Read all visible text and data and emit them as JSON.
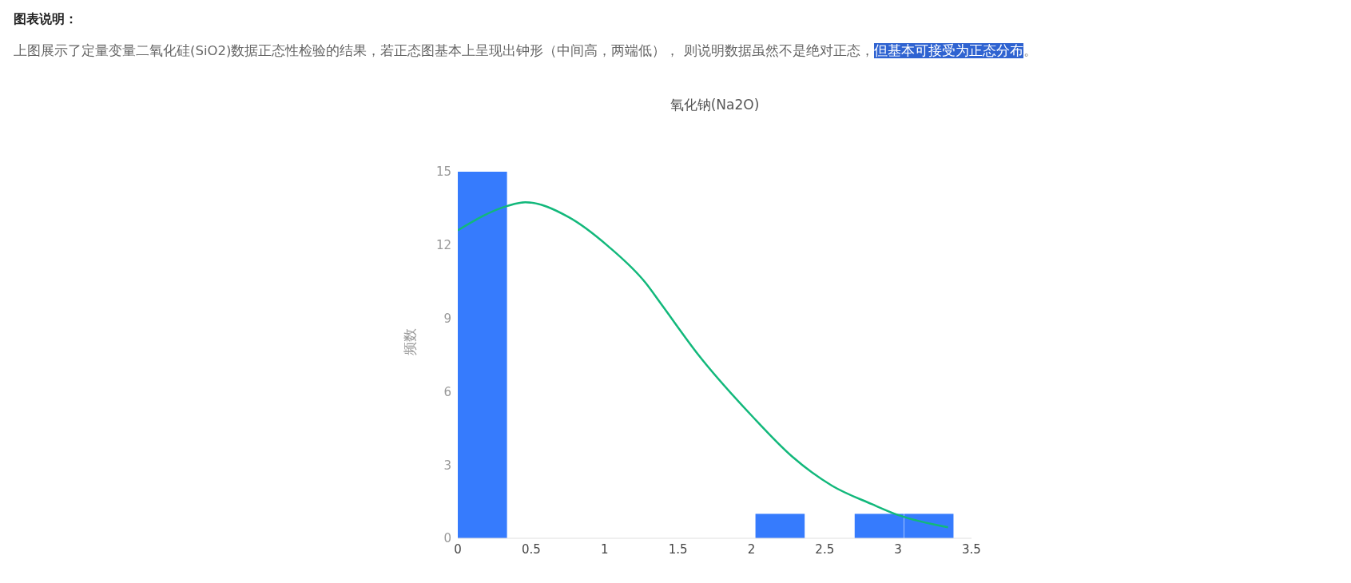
{
  "chart_data": {
    "type": "histogram",
    "title": "氧化钠(Na2O)",
    "ylabel": "频数",
    "annotations": [
      "图表说明：",
      "上图展示了定量变量二氧化硅(SiO2)数据正态性检验的结果，若正态图基本上呈现出钟形（中间高，两端低）， 则说明数据虽然不是绝对正态，",
      "但基本可接受为正态分布",
      "。"
    ],
    "bins": [
      0,
      0.338,
      0.676,
      1.014,
      1.352,
      1.69,
      2.028,
      2.366,
      2.704,
      3.042,
      3.38
    ],
    "values": [
      15,
      0,
      0,
      0,
      0,
      0,
      1,
      0,
      1,
      1
    ],
    "color": "#367bfd",
    "xlim": [
      0,
      3.5
    ],
    "xticks": [
      0,
      0.5,
      1,
      1.5,
      2,
      2.5,
      3,
      3.5
    ],
    "ylim": [
      0,
      15
    ],
    "yticks": [
      0,
      3,
      6,
      9,
      12,
      15
    ],
    "series": [
      {
        "type": "line",
        "color": "#12b87b",
        "x": [
          0,
          0.338,
          0.46,
          0.753,
          1.025,
          1.28,
          1.39,
          1.64,
          2.005,
          2.277,
          2.55,
          2.82,
          3.0,
          3.34
        ],
        "values": [
          12.6,
          13.6,
          13.75,
          13.15,
          11.95,
          10.45,
          9.55,
          7.5,
          5.0,
          3.35,
          2.15,
          1.4,
          0.95,
          0.45
        ]
      }
    ]
  }
}
